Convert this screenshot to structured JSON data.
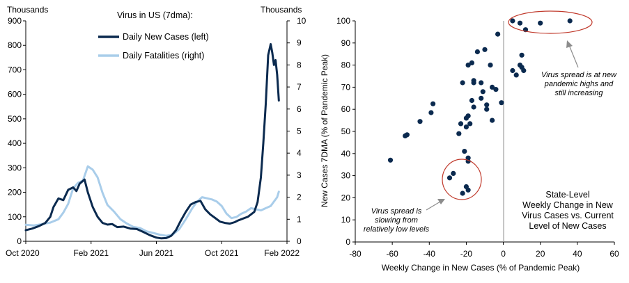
{
  "chart_data": [
    {
      "type": "line",
      "title": "Virus in US (7dma):",
      "ylabel_left": "Thousands",
      "ylabel_right": "Thousands",
      "ylim_left": [
        0,
        900
      ],
      "ylim_right": [
        0,
        10
      ],
      "yticks_left": [
        "0",
        "100",
        "200",
        "300",
        "400",
        "500",
        "600",
        "700",
        "800",
        "900"
      ],
      "yticks_right": [
        "0",
        "1",
        "2",
        "3",
        "4",
        "5",
        "6",
        "7",
        "8",
        "9",
        "10"
      ],
      "xticks": [
        "Oct 2020",
        "Feb 2021",
        "Jun 2021",
        "Oct 2021",
        "Feb 2022"
      ],
      "x_unit": "months since Oct 2020",
      "xlim": [
        0,
        16
      ],
      "series": [
        {
          "name": "Daily New Cases (left)",
          "axis": "left",
          "color": "#0b2a4f",
          "x": [
            0,
            0.4,
            0.8,
            1.2,
            1.5,
            1.7,
            2.0,
            2.3,
            2.6,
            2.9,
            3.1,
            3.3,
            3.6,
            3.8,
            4.1,
            4.4,
            4.7,
            5.0,
            5.3,
            5.6,
            6.0,
            6.4,
            6.8,
            7.2,
            7.6,
            8.0,
            8.3,
            8.6,
            8.9,
            9.2,
            9.5,
            9.8,
            10.1,
            10.4,
            10.7,
            11.0,
            11.3,
            11.6,
            11.9,
            12.2,
            12.5,
            12.8,
            13.0,
            13.2,
            13.4,
            13.6,
            13.8,
            14.0,
            14.2,
            14.4,
            14.55,
            14.7,
            14.85,
            15.0,
            15.1,
            15.2,
            15.3,
            15.4,
            15.5
          ],
          "values": [
            45,
            52,
            62,
            75,
            100,
            140,
            175,
            168,
            210,
            220,
            205,
            235,
            252,
            200,
            140,
            100,
            75,
            68,
            70,
            58,
            60,
            52,
            50,
            38,
            25,
            15,
            12,
            13,
            22,
            45,
            85,
            120,
            150,
            160,
            165,
            130,
            110,
            95,
            80,
            75,
            72,
            78,
            85,
            90,
            95,
            100,
            110,
            120,
            160,
            260,
            400,
            560,
            760,
            805,
            770,
            720,
            740,
            680,
            575
          ]
        },
        {
          "name": "Daily Fatalities (right)",
          "axis": "right",
          "color": "#a9cdea",
          "x": [
            0,
            0.5,
            1.0,
            1.5,
            2.0,
            2.3,
            2.6,
            2.9,
            3.2,
            3.5,
            3.8,
            4.1,
            4.4,
            4.7,
            5.0,
            5.4,
            5.8,
            6.2,
            6.6,
            7.0,
            7.4,
            7.8,
            8.2,
            8.6,
            9.0,
            9.4,
            9.8,
            10.2,
            10.5,
            10.8,
            11.1,
            11.4,
            11.7,
            12.0,
            12.3,
            12.6,
            12.9,
            13.2,
            13.5,
            13.8,
            14.1,
            14.4,
            14.7,
            15.0,
            15.2,
            15.4,
            15.5
          ],
          "values": [
            0.75,
            0.72,
            0.78,
            0.85,
            1.0,
            1.3,
            1.7,
            2.4,
            2.65,
            2.75,
            3.4,
            3.25,
            2.9,
            2.2,
            1.65,
            1.35,
            1.0,
            0.8,
            0.65,
            0.6,
            0.45,
            0.38,
            0.3,
            0.25,
            0.3,
            0.55,
            1.0,
            1.5,
            1.8,
            2.0,
            1.95,
            1.9,
            1.8,
            1.6,
            1.25,
            1.05,
            1.1,
            1.25,
            1.35,
            1.5,
            1.45,
            1.4,
            1.5,
            1.6,
            1.8,
            2.0,
            2.25
          ]
        }
      ]
    },
    {
      "type": "scatter",
      "xlabel": "Weekly Change  in New Cases (% of Pandemic Peak)",
      "ylabel": "New Cases 7DMA (% of Pandemic Peak)",
      "xlim": [
        -80,
        60
      ],
      "ylim": [
        0,
        100
      ],
      "xticks": [
        "-80",
        "-60",
        "-40",
        "-20",
        "0",
        "20",
        "40",
        "60"
      ],
      "yticks": [
        "0",
        "10",
        "20",
        "30",
        "40",
        "50",
        "60",
        "70",
        "80",
        "90",
        "100"
      ],
      "marker_color": "#0b2a4f",
      "points": [
        [
          -61,
          37
        ],
        [
          -53,
          48
        ],
        [
          -52,
          48.5
        ],
        [
          -45,
          54.5
        ],
        [
          -39,
          58.5
        ],
        [
          -38,
          62.5
        ],
        [
          -29,
          29
        ],
        [
          -27,
          31
        ],
        [
          -24,
          49
        ],
        [
          -23,
          53.5
        ],
        [
          -22,
          72
        ],
        [
          -20,
          56
        ],
        [
          -21,
          41
        ],
        [
          -20,
          52
        ],
        [
          -19,
          57
        ],
        [
          -19,
          80
        ],
        [
          -19,
          38
        ],
        [
          -18,
          53.5
        ],
        [
          -17,
          64
        ],
        [
          -17,
          81
        ],
        [
          -16,
          73
        ],
        [
          -16,
          72
        ],
        [
          -16,
          61
        ],
        [
          -14,
          86
        ],
        [
          -12,
          72
        ],
        [
          -12,
          65
        ],
        [
          -11,
          68
        ],
        [
          -10,
          87
        ],
        [
          -9,
          62
        ],
        [
          -9,
          60
        ],
        [
          -7,
          80
        ],
        [
          -6,
          55
        ],
        [
          -6,
          70
        ],
        [
          -4,
          69
        ],
        [
          -3,
          94
        ],
        [
          -1,
          63
        ],
        [
          -19,
          36.5
        ],
        [
          -22,
          22
        ],
        [
          -20,
          25
        ],
        [
          -19,
          23.5
        ],
        [
          5,
          100
        ],
        [
          9,
          99
        ],
        [
          12,
          96
        ],
        [
          20,
          99
        ],
        [
          36,
          100
        ],
        [
          5,
          77.5
        ],
        [
          7,
          75.5
        ],
        [
          9,
          80
        ],
        [
          10,
          84.5
        ],
        [
          10,
          79
        ],
        [
          11,
          77.5
        ]
      ],
      "annotations": {
        "top_right": [
          "Virus spread is at new",
          "pandemic highs and",
          "still increasing"
        ],
        "bottom_left": [
          "Virus spread is",
          "slowing from",
          "relatively low levels"
        ],
        "box_note": [
          "State-Level",
          "Weekly Change  in New",
          "Virus Cases vs. Current",
          "Level  of New Cases"
        ]
      }
    }
  ]
}
